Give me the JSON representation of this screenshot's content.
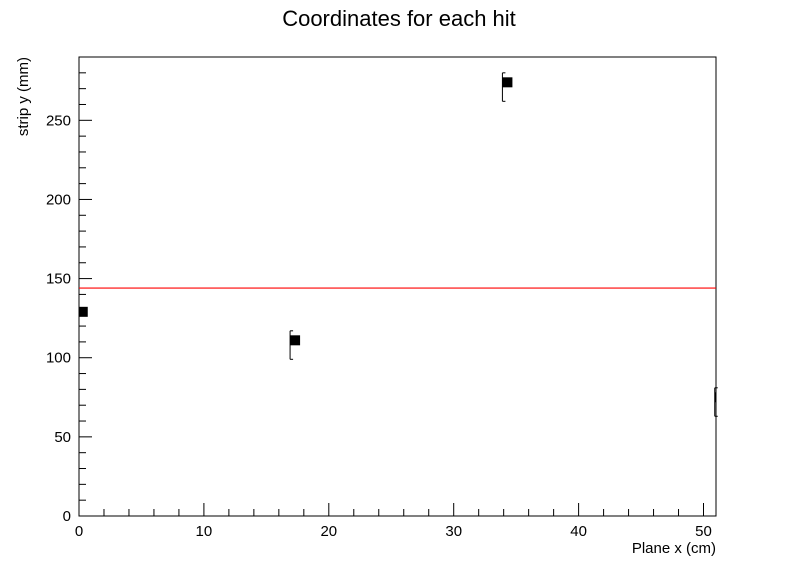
{
  "chart_data": {
    "type": "scatter",
    "title": "Coordinates for each hit",
    "xlabel": "Plane x (cm)",
    "ylabel": "strip  y (mm)",
    "xlim": [
      0,
      51
    ],
    "ylim": [
      0,
      290
    ],
    "x_ticks": [
      0,
      10,
      20,
      30,
      40,
      50
    ],
    "y_ticks": [
      0,
      50,
      100,
      150,
      200,
      250
    ],
    "grid": false,
    "points": [
      {
        "x": 0.3,
        "y": 129,
        "yerr_low": 0,
        "yerr_high": 0
      },
      {
        "x": 17.3,
        "y": 111,
        "yerr_low": 12,
        "yerr_high": 6
      },
      {
        "x": 34.3,
        "y": 274,
        "yerr_low": 12,
        "yerr_high": 6
      },
      {
        "x": 51.3,
        "y": 75,
        "yerr_low": 12,
        "yerr_high": 6
      }
    ],
    "fit_line": {
      "y": 144,
      "color": "#ff0000"
    },
    "marker_color": "#000000"
  }
}
